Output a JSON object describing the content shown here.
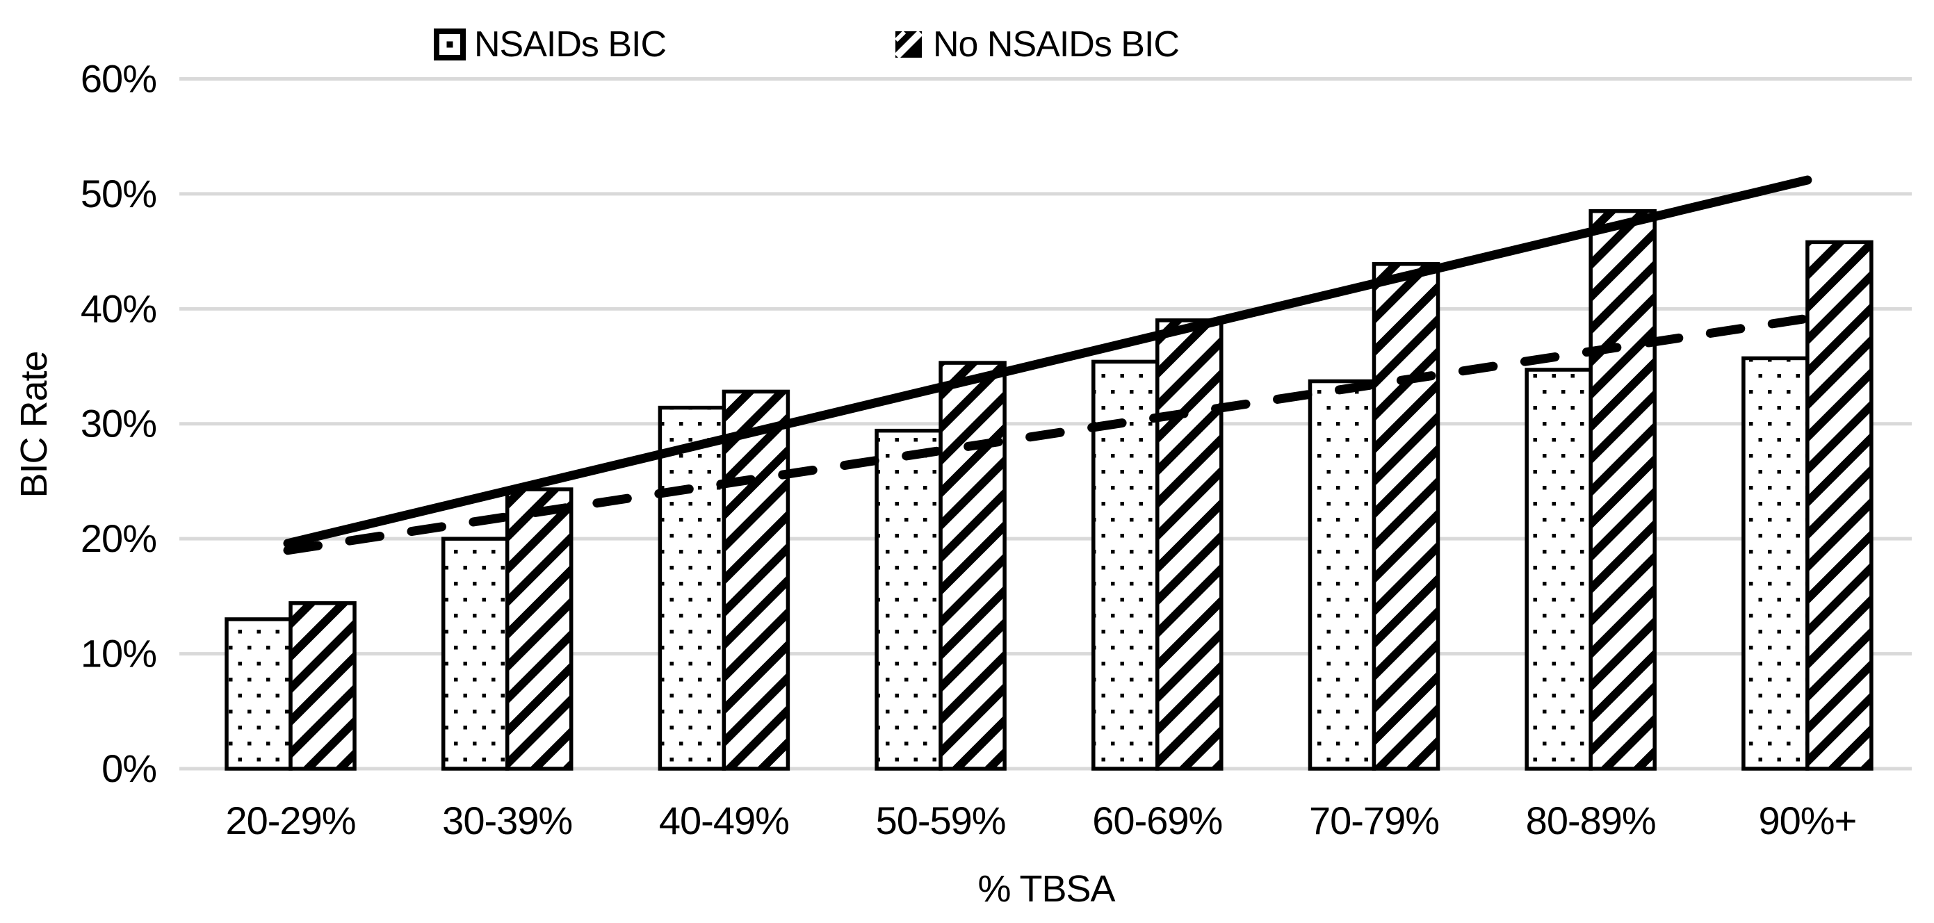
{
  "chart_data": {
    "type": "bar",
    "title": "",
    "categories": [
      "20-29%",
      "30-39%",
      "40-49%",
      "50-59%",
      "60-69%",
      "70-79%",
      "80-89%",
      "90%+"
    ],
    "series": [
      {
        "name": "NSAIDs BIC",
        "pattern": "dots",
        "unit": "percent",
        "values": [
          13.0,
          20.0,
          31.4,
          29.4,
          35.4,
          33.7,
          34.7,
          35.7
        ]
      },
      {
        "name": "No NSAIDs BIC",
        "pattern": "diagonal-stripes",
        "unit": "percent",
        "values": [
          14.4,
          24.3,
          32.8,
          35.3,
          39.0,
          43.9,
          48.5,
          45.8
        ]
      }
    ],
    "trendlines": [
      {
        "series": "NSAIDs BIC",
        "style": "dashed",
        "start_value": 19.0,
        "end_value": 39.1
      },
      {
        "series": "No NSAIDs BIC",
        "style": "solid",
        "start_value": 19.6,
        "end_value": 51.2
      }
    ],
    "xlabel": "% TBSA",
    "ylabel": "BIC Rate",
    "ylim": [
      0,
      60
    ],
    "ytick_step": 10,
    "ytick_labels": [
      "0%",
      "10%",
      "20%",
      "30%",
      "40%",
      "50%",
      "60%"
    ],
    "grid": true,
    "legend_position": "top",
    "colors": {
      "bar_fill": "#ffffff",
      "pattern_ink": "#000000",
      "bar_border": "#000000",
      "trendline": "#000000",
      "gridline": "#d9d9d9",
      "text": "#000000",
      "background": "#ffffff"
    }
  }
}
